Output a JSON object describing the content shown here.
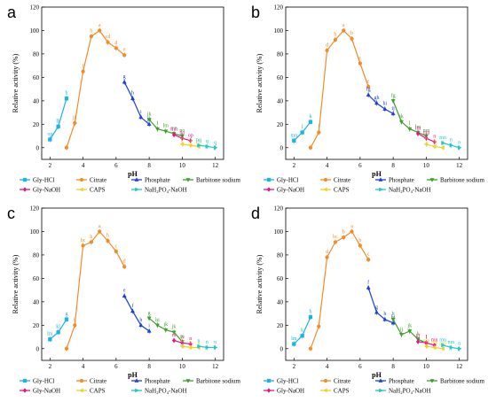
{
  "series_names": [
    "Gly-HCl",
    "Citrate",
    "Phosphate",
    "Barbitone sodium",
    "Gly-NaOH",
    "CAPS",
    "NaH₂PO₄-NaOH"
  ],
  "colors": [
    "#1ab2e8",
    "#f28c28",
    "#1d3fd6",
    "#3f9e2c",
    "#e0168a",
    "#f2d02a",
    "#22c7c7"
  ],
  "markers": [
    "square",
    "circle",
    "triangle-up",
    "triangle-down",
    "diamond",
    "triangle-left",
    "triangle-right"
  ],
  "chart_data": [
    {
      "type": "line",
      "panel_label": "a",
      "xlabel": "pH",
      "ylabel": "Relative activity (%)",
      "xlim": [
        1.5,
        12.5
      ],
      "ylim": [
        -10,
        120
      ],
      "xticks": [
        2,
        4,
        6,
        8,
        10,
        12
      ],
      "yticks": [
        0,
        20,
        40,
        60,
        80,
        100,
        120
      ],
      "legend_position": "bottom",
      "series": [
        {
          "name": "Gly-HCl",
          "x": [
            2,
            2.5,
            3
          ],
          "y": [
            7,
            18,
            42
          ],
          "labels": [
            "op",
            "lk",
            "h"
          ]
        },
        {
          "name": "Citrate",
          "x": [
            3,
            3.5,
            4,
            4.5,
            5,
            5.5,
            6,
            6.5
          ],
          "y": [
            0,
            21,
            65,
            95,
            100,
            90,
            85,
            79
          ],
          "labels": [
            "",
            "jk",
            "f",
            "b",
            "a",
            "cd",
            "d",
            "e"
          ]
        },
        {
          "name": "Phosphate",
          "x": [
            6.5,
            7,
            7.5,
            8
          ],
          "y": [
            56,
            42,
            26,
            20
          ],
          "labels": [
            "g",
            "h",
            "i",
            "jk"
          ]
        },
        {
          "name": "Barbitone sodium",
          "x": [
            8,
            8.5,
            9,
            9.5,
            10
          ],
          "y": [
            24,
            16,
            14,
            12,
            10
          ],
          "labels": [
            "jk",
            "l",
            "lm",
            "mn",
            "no"
          ]
        },
        {
          "name": "Gly-NaOH",
          "x": [
            9.5,
            10,
            10.5
          ],
          "y": [
            11,
            8,
            6
          ],
          "labels": [
            "mn",
            "no",
            "op"
          ]
        },
        {
          "name": "CAPS",
          "x": [
            10,
            10.5,
            11
          ],
          "y": [
            3,
            2,
            1
          ],
          "labels": [
            "p",
            "q",
            "pq"
          ]
        },
        {
          "name": "NaH₂PO₄-NaOH",
          "x": [
            11,
            11.5,
            12
          ],
          "y": [
            2,
            1,
            0
          ],
          "labels": [
            "pq",
            "q",
            "q"
          ]
        }
      ]
    },
    {
      "type": "line",
      "panel_label": "b",
      "xlabel": "pH",
      "ylabel": "Relative activity (%)",
      "xlim": [
        1.5,
        12.5
      ],
      "ylim": [
        -10,
        120
      ],
      "xticks": [
        2,
        4,
        6,
        8,
        10,
        12
      ],
      "yticks": [
        0,
        20,
        40,
        60,
        80,
        100,
        120
      ],
      "legend_position": "bottom",
      "series": [
        {
          "name": "Gly-HCl",
          "x": [
            2,
            2.5,
            3
          ],
          "y": [
            6,
            13,
            22
          ],
          "labels": [
            "mn",
            "l",
            "k"
          ]
        },
        {
          "name": "Citrate",
          "x": [
            3,
            3.5,
            4,
            4.5,
            5,
            5.5,
            6,
            6.5
          ],
          "y": [
            0,
            13,
            83,
            92,
            100,
            93,
            72,
            52
          ],
          "labels": [
            "",
            "l",
            "d",
            "b",
            "a",
            "b",
            "c",
            "e"
          ]
        },
        {
          "name": "Phosphate",
          "x": [
            6.5,
            7,
            7.5,
            8
          ],
          "y": [
            45,
            38,
            33,
            29
          ],
          "labels": [
            "fg",
            "gh",
            "hi",
            "ij"
          ]
        },
        {
          "name": "Barbitone sodium",
          "x": [
            8,
            8.5,
            9,
            9.5,
            10
          ],
          "y": [
            40,
            22,
            16,
            13,
            10
          ],
          "labels": [
            "fg",
            "jk",
            "l",
            "lm",
            "mn"
          ]
        },
        {
          "name": "Gly-NaOH",
          "x": [
            9.5,
            10,
            10.5
          ],
          "y": [
            12,
            8,
            5
          ],
          "labels": [
            "lm",
            "mn",
            "n"
          ]
        },
        {
          "name": "CAPS",
          "x": [
            10,
            10.5,
            11
          ],
          "y": [
            3,
            1,
            0
          ],
          "labels": [
            "n",
            "n",
            "n"
          ]
        },
        {
          "name": "NaH₂PO₄-NaOH",
          "x": [
            11,
            11.5,
            12
          ],
          "y": [
            4,
            2,
            0
          ],
          "labels": [
            "mn",
            "n",
            "n"
          ]
        }
      ]
    },
    {
      "type": "line",
      "panel_label": "c",
      "xlabel": "pH",
      "ylabel": "Relative activity (%)",
      "xlim": [
        1.5,
        12.5
      ],
      "ylim": [
        -10,
        120
      ],
      "xticks": [
        2,
        4,
        6,
        8,
        10,
        12
      ],
      "yticks": [
        0,
        20,
        40,
        60,
        80,
        100,
        120
      ],
      "legend_position": "bottom",
      "series": [
        {
          "name": "Gly-HCl",
          "x": [
            2,
            2.5,
            3
          ],
          "y": [
            8,
            14,
            25
          ],
          "labels": [
            "lm",
            "kl",
            "g"
          ]
        },
        {
          "name": "Citrate",
          "x": [
            3,
            3.5,
            4,
            4.5,
            5,
            5.5,
            6,
            6.5
          ],
          "y": [
            0,
            20,
            88,
            91,
            100,
            92,
            83,
            70
          ],
          "labels": [
            "",
            "h",
            "bc",
            "b",
            "a",
            "b",
            "c",
            "d"
          ]
        },
        {
          "name": "Phosphate",
          "x": [
            6.5,
            7,
            7.5,
            8
          ],
          "y": [
            45,
            32,
            20,
            15
          ],
          "labels": [
            "e",
            "f",
            "h",
            "i"
          ]
        },
        {
          "name": "Barbitone sodium",
          "x": [
            8,
            8.5,
            9,
            9.5,
            10
          ],
          "y": [
            26,
            20,
            16,
            14,
            6
          ],
          "labels": [
            "g",
            "hi",
            "jk",
            "jk",
            "m"
          ]
        },
        {
          "name": "Gly-NaOH",
          "x": [
            9.5,
            10,
            10.5
          ],
          "y": [
            7,
            5,
            4
          ],
          "labels": [
            "m",
            "n",
            "n"
          ]
        },
        {
          "name": "CAPS",
          "x": [
            10,
            10.5,
            11
          ],
          "y": [
            2,
            1,
            1
          ],
          "labels": [
            "n",
            "n",
            "n"
          ]
        },
        {
          "name": "NaH₂PO₄-NaOH",
          "x": [
            11,
            11.5,
            12
          ],
          "y": [
            2,
            1,
            1
          ],
          "labels": [
            "n",
            "n",
            "n"
          ]
        }
      ]
    },
    {
      "type": "line",
      "panel_label": "d",
      "xlabel": "pH",
      "ylabel": "Relative activity (%)",
      "xlim": [
        1.5,
        12.5
      ],
      "ylim": [
        -10,
        120
      ],
      "xticks": [
        2,
        4,
        6,
        8,
        10,
        12
      ],
      "yticks": [
        0,
        20,
        40,
        60,
        80,
        100,
        120
      ],
      "legend_position": "bottom",
      "series": [
        {
          "name": "Gly-HCl",
          "x": [
            2,
            2.5,
            3
          ],
          "y": [
            4,
            11,
            27
          ],
          "labels": [
            "lm",
            "k",
            "h"
          ]
        },
        {
          "name": "Citrate",
          "x": [
            3,
            3.5,
            4,
            4.5,
            5,
            5.5,
            6,
            6.5
          ],
          "y": [
            0,
            19,
            78,
            91,
            95,
            100,
            88,
            76
          ],
          "labels": [
            "",
            "",
            "d",
            "bc",
            "b",
            "a",
            "b",
            "c"
          ]
        },
        {
          "name": "Phosphate",
          "x": [
            6.5,
            7,
            7.5,
            8
          ],
          "y": [
            52,
            31,
            25,
            22
          ],
          "labels": [
            "f",
            "g",
            "h",
            "hi"
          ]
        },
        {
          "name": "Barbitone sodium",
          "x": [
            8,
            8.5,
            9,
            9.5,
            10
          ],
          "y": [
            25,
            12,
            15,
            8,
            5
          ],
          "labels": [
            "h",
            "ij",
            "jk",
            "k",
            "l"
          ]
        },
        {
          "name": "Gly-NaOH",
          "x": [
            9.5,
            10,
            10.5
          ],
          "y": [
            6,
            5,
            3
          ],
          "labels": [
            "kl",
            "l",
            "mn"
          ]
        },
        {
          "name": "CAPS",
          "x": [
            10,
            10.5,
            11
          ],
          "y": [
            2,
            1,
            0
          ],
          "labels": [
            "mn",
            "mn",
            "mn"
          ]
        },
        {
          "name": "NaH₂PO₄-NaOH",
          "x": [
            11,
            11.5,
            12
          ],
          "y": [
            3,
            1,
            0
          ],
          "labels": [
            "mn",
            "mn",
            "n"
          ]
        }
      ]
    }
  ]
}
